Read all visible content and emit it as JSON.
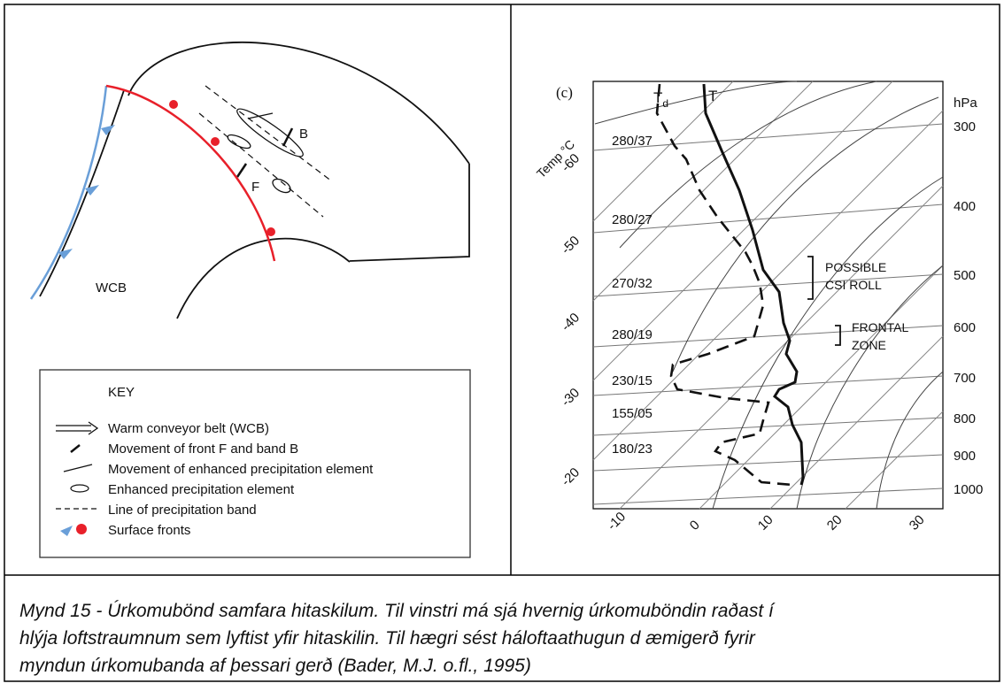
{
  "left_panel": {
    "labels": {
      "band": "B",
      "front": "F",
      "belt": "WCB"
    },
    "key": {
      "title": "KEY",
      "items": [
        "Warm conveyor belt (WCB)",
        "Movement of front F and band B",
        "Movement of enhanced precipitation element",
        "Enhanced precipitation element",
        "Line of precipitation band",
        "Surface fronts"
      ]
    }
  },
  "right_panel": {
    "panel_label": "(c)",
    "dewpoint_label": {
      "main": "T",
      "sub": "d"
    },
    "temperature_label": "T",
    "pressure_unit": "hPa",
    "temp_axis_label": "Temp °C",
    "pressure_ticks": [
      "300",
      "400",
      "500",
      "600",
      "700",
      "800",
      "900",
      "1000"
    ],
    "left_temp_ticks": [
      "-60",
      "-50",
      "-40",
      "-30",
      "-20"
    ],
    "bottom_temp_ticks": [
      "-10",
      "0",
      "10",
      "20",
      "30"
    ],
    "wind_labels": [
      "280/37",
      "280/27",
      "270/32",
      "280/19",
      "230/15",
      "155/05",
      "180/23"
    ],
    "annotations": {
      "csi": [
        "POSSIBLE",
        "CSI ROLL"
      ],
      "frontal": [
        "FRONTAL",
        "ZONE"
      ]
    }
  },
  "caption": [
    "Mynd 15  -  Úrkomubönd samfara hitaskilum. Til vinstri má sjá hvernig úrkomuböndin raðast í",
    "hlýja loftstraumnum sem lyftist yfir hitaskilin. Til hægri sést háloftaathugun d æmigerð fyrir",
    "myndun úrkomubanda af þessari gerð (Bader, M.J. o.fl., 1995)"
  ]
}
